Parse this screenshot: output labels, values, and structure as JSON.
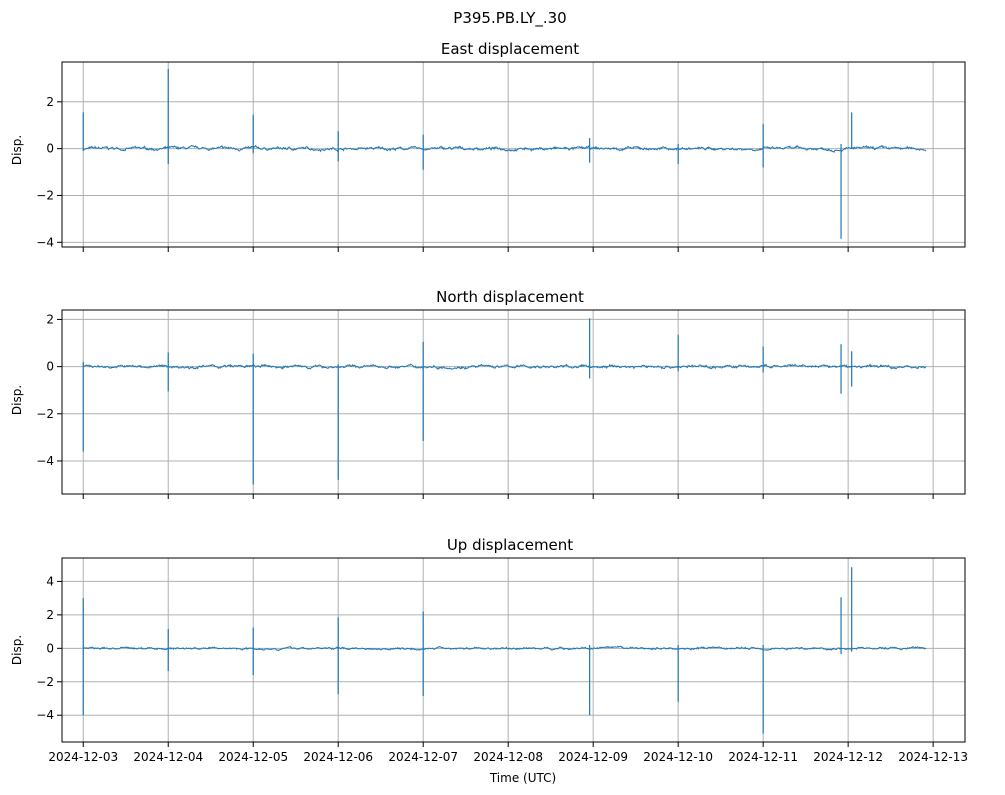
{
  "chart_data": {
    "type": "line",
    "suptitle": "P395.PB.LY_.30",
    "xlabel": "Time (UTC)",
    "x_tick_labels": [
      "2024-12-03",
      "2024-12-04",
      "2024-12-05",
      "2024-12-06",
      "2024-12-07",
      "2024-12-08",
      "2024-12-09",
      "2024-12-10",
      "2024-12-11",
      "2024-12-12",
      "2024-12-13"
    ],
    "xlim": [
      "2024-12-02T18:00",
      "2024-12-13T09:00"
    ],
    "data_range": [
      "2024-12-03T00:00",
      "2024-12-12T22:00"
    ],
    "grid": true,
    "line_color": "#1f77b4",
    "panels": [
      {
        "title": "East displacement",
        "ylabel": "Disp.",
        "ylim": [
          -4.2,
          3.7
        ],
        "yticks": [
          2,
          0,
          -2,
          -4
        ],
        "ytick_labels": [
          "2",
          "0",
          "−2",
          "−4"
        ],
        "spikes": [
          {
            "t": "2024-12-03T00:00",
            "max": 1.55,
            "min": -0.1
          },
          {
            "t": "2024-12-04T00:00",
            "max": 3.4,
            "min": -0.65
          },
          {
            "t": "2024-12-05T00:00",
            "max": 1.45,
            "min": -0.2
          },
          {
            "t": "2024-12-06T00:00",
            "max": 0.75,
            "min": -0.55
          },
          {
            "t": "2024-12-07T00:00",
            "max": 0.6,
            "min": -0.9
          },
          {
            "t": "2024-12-08T23:00",
            "max": 0.45,
            "min": -0.6
          },
          {
            "t": "2024-12-10T00:00",
            "max": 0.2,
            "min": -0.65
          },
          {
            "t": "2024-12-11T00:00",
            "max": 1.05,
            "min": -0.8
          },
          {
            "t": "2024-12-11T22:00",
            "max": 0.2,
            "min": -3.85
          },
          {
            "t": "2024-12-12T01:00",
            "max": 1.55,
            "min": 0.0
          }
        ]
      },
      {
        "title": "North displacement",
        "ylabel": "Disp.",
        "ylim": [
          -5.4,
          2.4
        ],
        "yticks": [
          2,
          0,
          -2,
          -4
        ],
        "ytick_labels": [
          "2",
          "0",
          "−2",
          "−4"
        ],
        "spikes": [
          {
            "t": "2024-12-03T00:00",
            "max": 0.2,
            "min": -3.6
          },
          {
            "t": "2024-12-04T00:00",
            "max": 0.6,
            "min": -1.05
          },
          {
            "t": "2024-12-05T00:00",
            "max": 0.55,
            "min": -5.0
          },
          {
            "t": "2024-12-06T00:00",
            "max": 0.1,
            "min": -4.8
          },
          {
            "t": "2024-12-07T00:00",
            "max": 1.05,
            "min": -3.15
          },
          {
            "t": "2024-12-08T23:00",
            "max": 2.05,
            "min": -0.5
          },
          {
            "t": "2024-12-10T00:00",
            "max": 1.35,
            "min": -0.2
          },
          {
            "t": "2024-12-11T00:00",
            "max": 0.85,
            "min": -0.25
          },
          {
            "t": "2024-12-11T22:00",
            "max": 0.95,
            "min": -1.15
          },
          {
            "t": "2024-12-12T01:00",
            "max": 0.65,
            "min": -0.85
          }
        ]
      },
      {
        "title": "Up displacement",
        "ylabel": "Disp.",
        "ylim": [
          -5.6,
          5.4
        ],
        "yticks": [
          4,
          2,
          0,
          -2,
          -4
        ],
        "ytick_labels": [
          "4",
          "2",
          "0",
          "−2",
          "−4"
        ],
        "spikes": [
          {
            "t": "2024-12-03T00:00",
            "max": 3.0,
            "min": -4.0
          },
          {
            "t": "2024-12-04T00:00",
            "max": 1.15,
            "min": -1.35
          },
          {
            "t": "2024-12-05T00:00",
            "max": 1.25,
            "min": -1.6
          },
          {
            "t": "2024-12-06T00:00",
            "max": 1.85,
            "min": -2.75
          },
          {
            "t": "2024-12-07T00:00",
            "max": 2.2,
            "min": -2.85
          },
          {
            "t": "2024-12-08T23:00",
            "max": 0.2,
            "min": -4.0
          },
          {
            "t": "2024-12-10T00:00",
            "max": 0.2,
            "min": -3.2
          },
          {
            "t": "2024-12-11T00:00",
            "max": 0.2,
            "min": -5.1
          },
          {
            "t": "2024-12-11T22:00",
            "max": 3.05,
            "min": -0.35
          },
          {
            "t": "2024-12-12T01:00",
            "max": 4.85,
            "min": -0.2
          }
        ]
      }
    ]
  }
}
